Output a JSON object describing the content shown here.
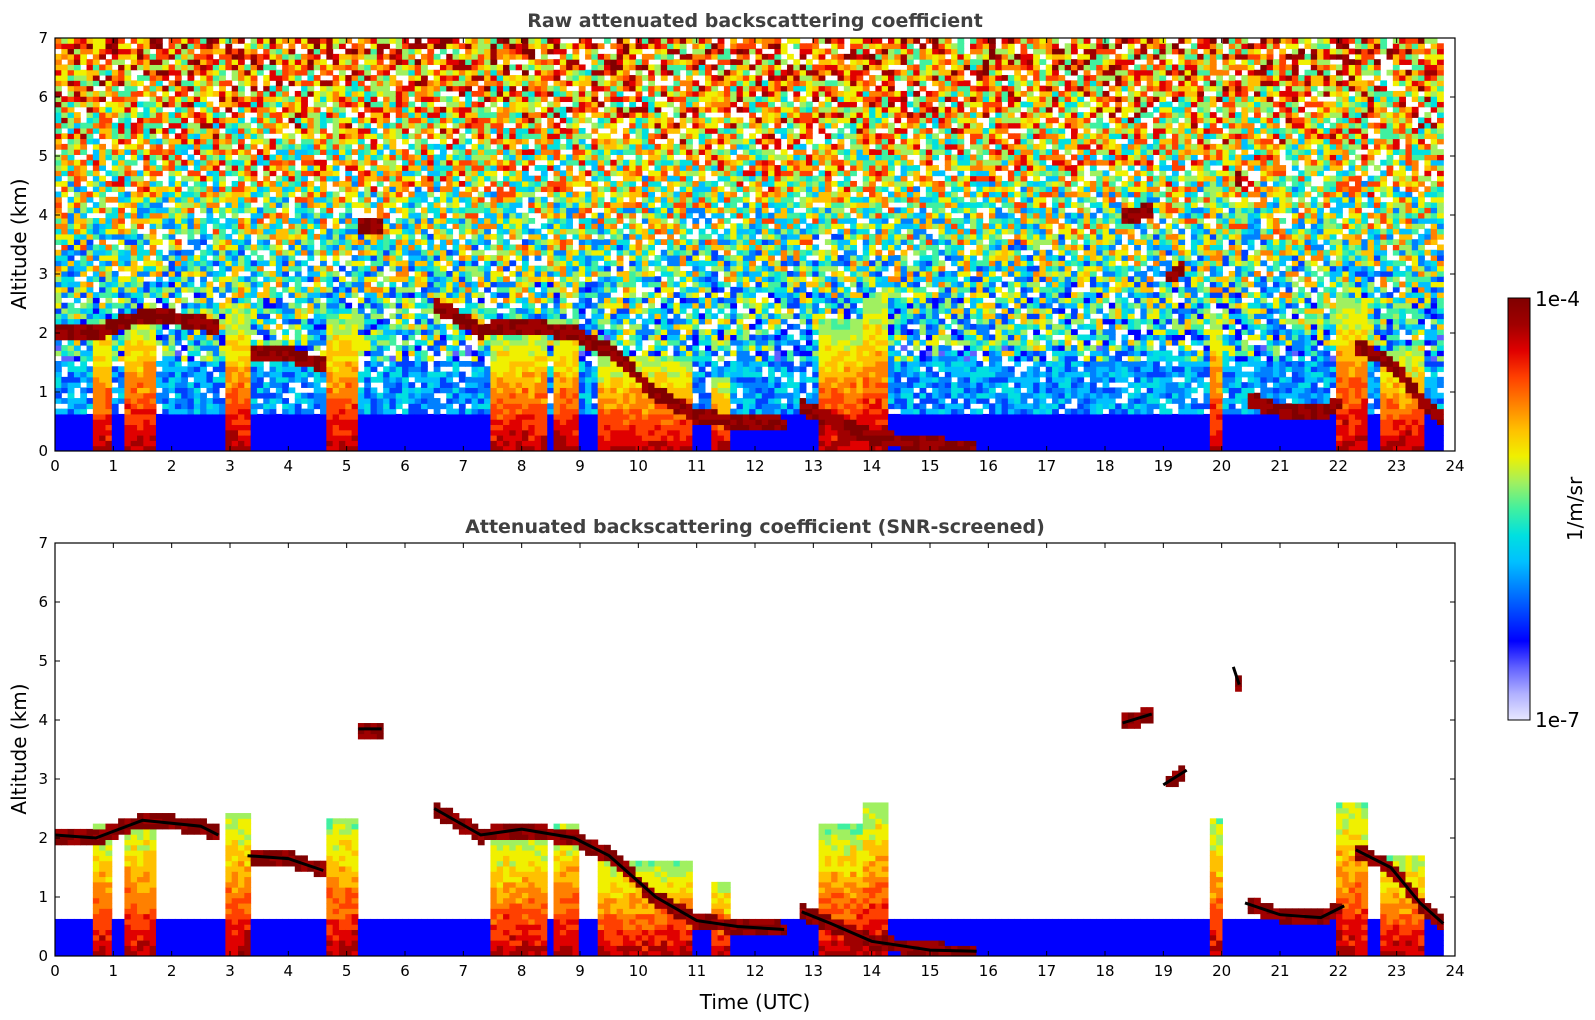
{
  "chart_data": [
    {
      "type": "heatmap",
      "title": "Raw attenuated backscattering coefficient",
      "xlabel": "",
      "ylabel": "Altitude (km)",
      "xlim": [
        0,
        24
      ],
      "ylim": [
        0,
        7
      ],
      "xticks": [
        "0",
        "1",
        "2",
        "3",
        "4",
        "5",
        "6",
        "7",
        "8",
        "9",
        "10",
        "11",
        "12",
        "13",
        "14",
        "15",
        "16",
        "17",
        "18",
        "19",
        "20",
        "21",
        "22",
        "23",
        "24"
      ],
      "yticks": [
        "0",
        "1",
        "2",
        "3",
        "4",
        "5",
        "6",
        "7"
      ],
      "screened": false,
      "cloud_layers": [
        {
          "x": [
            0,
            0.7,
            1.5,
            2.5,
            2.8
          ],
          "y": [
            2.05,
            2.0,
            2.3,
            2.2,
            2.05
          ]
        },
        {
          "x": [
            3.3,
            4.0,
            4.6
          ],
          "y": [
            1.7,
            1.65,
            1.45
          ]
        },
        {
          "x": [
            5.2,
            5.6
          ],
          "y": [
            3.85,
            3.85
          ]
        },
        {
          "x": [
            6.5,
            7.3,
            8.0,
            8.9,
            9.5,
            10.3,
            11.0,
            11.7,
            12.5
          ],
          "y": [
            2.5,
            2.05,
            2.15,
            2.0,
            1.7,
            1.0,
            0.6,
            0.5,
            0.45
          ]
        },
        {
          "x": [
            12.8,
            13.3,
            14.0,
            15.0,
            15.8
          ],
          "y": [
            0.75,
            0.55,
            0.25,
            0.1,
            0.08
          ]
        },
        {
          "x": [
            18.3,
            18.8
          ],
          "y": [
            3.95,
            4.1
          ]
        },
        {
          "x": [
            19.0,
            19.4
          ],
          "y": [
            2.9,
            3.15
          ]
        },
        {
          "x": [
            20.2,
            20.3
          ],
          "y": [
            4.9,
            4.6
          ]
        },
        {
          "x": [
            20.4,
            21.0,
            21.7,
            22.1
          ],
          "y": [
            0.9,
            0.7,
            0.65,
            0.85
          ]
        },
        {
          "x": [
            22.3,
            22.9,
            23.4,
            23.8
          ],
          "y": [
            1.8,
            1.5,
            0.9,
            0.55
          ]
        }
      ]
    },
    {
      "type": "heatmap",
      "title": "Attenuated backscattering coefficient (SNR-screened)",
      "xlabel": "Time (UTC)",
      "ylabel": "Altitude (km)",
      "xlim": [
        0,
        24
      ],
      "ylim": [
        0,
        7
      ],
      "xticks": [
        "0",
        "1",
        "2",
        "3",
        "4",
        "5",
        "6",
        "7",
        "8",
        "9",
        "10",
        "11",
        "12",
        "13",
        "14",
        "15",
        "16",
        "17",
        "18",
        "19",
        "20",
        "21",
        "22",
        "23",
        "24"
      ],
      "yticks": [
        "0",
        "1",
        "2",
        "3",
        "4",
        "5",
        "6",
        "7"
      ],
      "screened": true
    }
  ],
  "colorbar": {
    "max_label": "1e-4",
    "min_label": "1e-7",
    "unit_label": "1/m/sr",
    "colors": [
      "#e8e8ff",
      "#b0b0ff",
      "#6060ff",
      "#0000ff",
      "#0040ff",
      "#0080ff",
      "#00c0ff",
      "#00e0e0",
      "#40f0a0",
      "#a0f060",
      "#f0f000",
      "#ffc000",
      "#ff8000",
      "#ff4000",
      "#e00000",
      "#a00000",
      "#800000"
    ]
  }
}
